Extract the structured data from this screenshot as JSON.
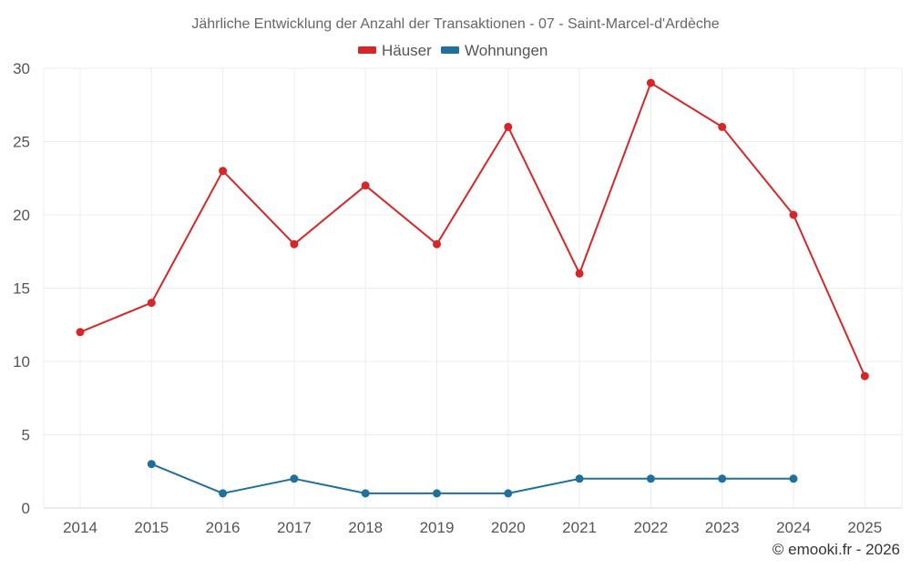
{
  "chart_data": {
    "type": "line",
    "title": "Jährliche Entwicklung der Anzahl der Transaktionen - 07 - Saint-Marcel-d'Ardèche",
    "x": [
      "2014",
      "2015",
      "2016",
      "2017",
      "2018",
      "2019",
      "2020",
      "2021",
      "2022",
      "2023",
      "2024",
      "2025"
    ],
    "ylim": [
      0,
      30
    ],
    "y_ticks": [
      "0",
      "5",
      "10",
      "15",
      "20",
      "25",
      "30"
    ],
    "grid": true,
    "legend_position": "top-center",
    "series": [
      {
        "name": "Häuser",
        "color": "#d62728",
        "values": [
          12,
          14,
          23,
          18,
          22,
          18,
          26,
          16,
          29,
          26,
          20,
          9
        ]
      },
      {
        "name": "Wohnungen",
        "color": "#1f6f9f",
        "values": [
          null,
          3,
          1,
          2,
          1,
          1,
          1,
          2,
          2,
          2,
          2,
          null
        ]
      }
    ]
  },
  "credit": "© emooki.fr - 2026"
}
